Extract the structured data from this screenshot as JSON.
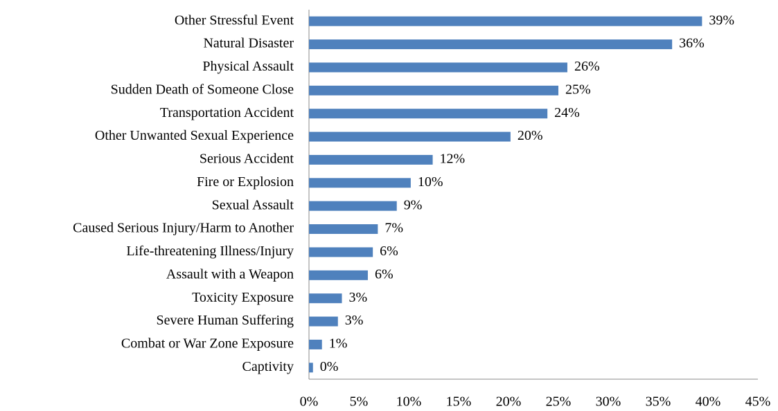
{
  "chart_data": {
    "type": "barh",
    "categories": [
      "Other Stressful Event",
      "Natural Disaster",
      "Physical Assault",
      "Sudden Death of Someone Close",
      "Transportation Accident",
      "Other Unwanted Sexual Experience",
      "Serious Accident",
      "Fire or Explosion",
      "Sexual Assault",
      "Caused Serious Injury/Harm to Another",
      "Life-threatening Illness/Injury",
      "Assault with a Weapon",
      "Toxicity Exposure",
      "Severe Human Suffering",
      "Combat or War Zone Exposure",
      "Captivity"
    ],
    "values": [
      39.4,
      36.4,
      25.9,
      25.0,
      23.9,
      20.2,
      12.4,
      10.2,
      8.8,
      6.9,
      6.4,
      5.9,
      3.3,
      2.9,
      1.3,
      0.4
    ],
    "value_labels": [
      "39%",
      "36%",
      "26%",
      "25%",
      "24%",
      "20%",
      "12%",
      "10%",
      "9%",
      "7%",
      "6%",
      "6%",
      "3%",
      "3%",
      "1%",
      "0%"
    ],
    "color": "#4f81bd",
    "xlim": [
      0,
      45
    ],
    "xticks": [
      {
        "value": 0,
        "label": "0%"
      },
      {
        "value": 5,
        "label": "5%"
      },
      {
        "value": 10,
        "label": "10%"
      },
      {
        "value": 15,
        "label": "15%"
      },
      {
        "value": 20,
        "label": "20%"
      },
      {
        "value": 25,
        "label": "25%"
      },
      {
        "value": 30,
        "label": "30%"
      },
      {
        "value": 35,
        "label": "35%"
      },
      {
        "value": 40,
        "label": "40%"
      },
      {
        "value": 45,
        "label": "45%"
      }
    ],
    "grid": false
  }
}
